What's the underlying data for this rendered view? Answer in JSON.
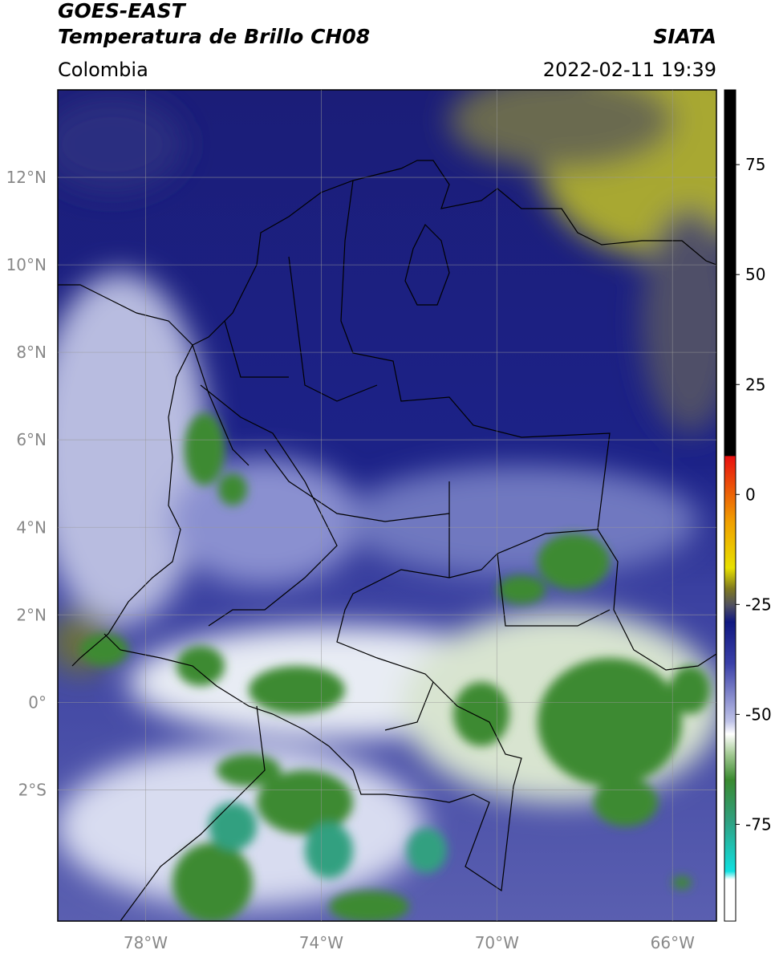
{
  "header": {
    "title": "GOES-EAST",
    "subtitle": "Temperatura de Brillo CH08",
    "region": "Colombia",
    "source": "SIATA",
    "timestamp": "2022-02-11 19:39"
  },
  "map": {
    "type": "map",
    "xlim": [
      -80,
      -65
    ],
    "ylim": [
      -5,
      14
    ],
    "grid": true,
    "xticks": [
      {
        "value": -78,
        "label": "78°W"
      },
      {
        "value": -74,
        "label": "74°W"
      },
      {
        "value": -70,
        "label": "70°W"
      },
      {
        "value": -66,
        "label": "66°W"
      }
    ],
    "yticks": [
      {
        "value": 12,
        "label": "12°N"
      },
      {
        "value": 10,
        "label": "10°N"
      },
      {
        "value": 8,
        "label": "8°N"
      },
      {
        "value": 6,
        "label": "6°N"
      },
      {
        "value": 4,
        "label": "4°N"
      },
      {
        "value": 2,
        "label": "2°N"
      },
      {
        "value": 0,
        "label": "0°"
      },
      {
        "value": -2,
        "label": "2°S"
      }
    ]
  },
  "colorbar": {
    "clim": [
      -97,
      92
    ],
    "ticks": [
      75,
      50,
      25,
      0,
      -25,
      -50,
      -75
    ]
  }
}
